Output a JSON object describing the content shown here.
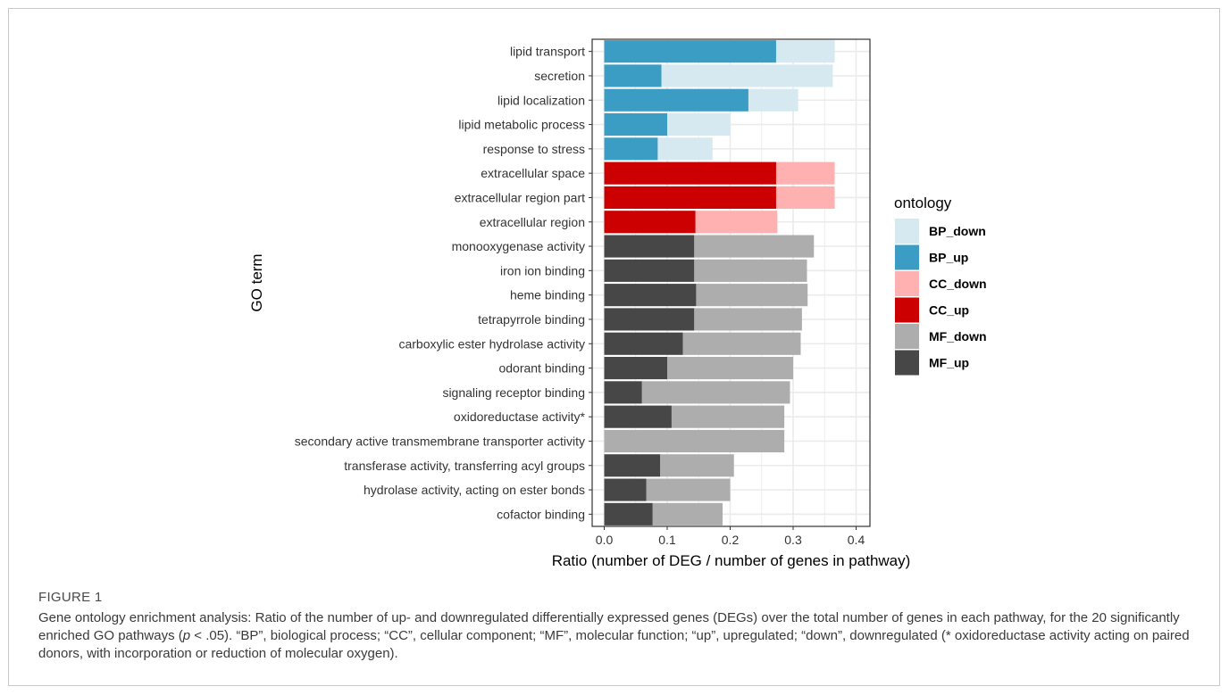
{
  "chart_data": {
    "type": "bar",
    "orientation": "horizontal",
    "stacked": true,
    "xlabel": "Ratio (number of DEG / number of genes in pathway)",
    "ylabel": "GO term",
    "xlim": [
      0,
      0.4
    ],
    "xticks": [
      "0.0",
      "0.1",
      "0.2",
      "0.3",
      "0.4"
    ],
    "grid": true,
    "legend_title": "ontology",
    "legend_position": "right",
    "legend": [
      {
        "name": "BP_down",
        "color": "#d6e9f0"
      },
      {
        "name": "BP_up",
        "color": "#3b9cc4"
      },
      {
        "name": "CC_down",
        "color": "#ffb0b0"
      },
      {
        "name": "CC_up",
        "color": "#cc0000"
      },
      {
        "name": "MF_down",
        "color": "#adadad"
      },
      {
        "name": "MF_up",
        "color": "#474747"
      }
    ],
    "categories": [
      {
        "term": "lipid transport",
        "ontology": "BP",
        "up": 0.273,
        "total": 0.366
      },
      {
        "term": "secretion",
        "ontology": "BP",
        "up": 0.091,
        "total": 0.363
      },
      {
        "term": "lipid localization",
        "ontology": "BP",
        "up": 0.229,
        "total": 0.308
      },
      {
        "term": "lipid metabolic process",
        "ontology": "BP",
        "up": 0.1,
        "total": 0.2
      },
      {
        "term": "response to stress",
        "ontology": "BP",
        "up": 0.085,
        "total": 0.172
      },
      {
        "term": "extracellular space",
        "ontology": "CC",
        "up": 0.273,
        "total": 0.366
      },
      {
        "term": "extracellular region part",
        "ontology": "CC",
        "up": 0.273,
        "total": 0.366
      },
      {
        "term": "extracellular region",
        "ontology": "CC",
        "up": 0.145,
        "total": 0.275
      },
      {
        "term": "monooxygenase activity",
        "ontology": "MF",
        "up": 0.143,
        "total": 0.333
      },
      {
        "term": "iron ion binding",
        "ontology": "MF",
        "up": 0.143,
        "total": 0.322
      },
      {
        "term": "heme binding",
        "ontology": "MF",
        "up": 0.146,
        "total": 0.323
      },
      {
        "term": "tetrapyrrole binding",
        "ontology": "MF",
        "up": 0.143,
        "total": 0.314
      },
      {
        "term": "carboxylic ester hydrolase activity",
        "ontology": "MF",
        "up": 0.125,
        "total": 0.312
      },
      {
        "term": "odorant binding",
        "ontology": "MF",
        "up": 0.1,
        "total": 0.3
      },
      {
        "term": "signaling receptor binding",
        "ontology": "MF",
        "up": 0.06,
        "total": 0.295
      },
      {
        "term": "oxidoreductase activity*",
        "ontology": "MF",
        "up": 0.107,
        "total": 0.286
      },
      {
        "term": "secondary active transmembrane transporter activity",
        "ontology": "MF",
        "up": 0.0,
        "total": 0.286
      },
      {
        "term": "transferase activity, transferring acyl groups",
        "ontology": "MF",
        "up": 0.089,
        "total": 0.206
      },
      {
        "term": "hydrolase activity, acting on ester bonds",
        "ontology": "MF",
        "up": 0.067,
        "total": 0.2
      },
      {
        "term": "cofactor binding",
        "ontology": "MF",
        "up": 0.077,
        "total": 0.188
      }
    ]
  },
  "caption": {
    "label": "FIGURE 1",
    "text_before_p": "Gene ontology enrichment analysis: Ratio of the number of up- and downregulated differentially expressed genes (DEGs) over the total number of genes in each pathway, for the 20 significantly enriched GO pathways (",
    "p_symbol": "p",
    "text_after_p": " < .05). “BP”, biological process; “CC”, cellular component; “MF”, molecular function; “up”, upregulated; “down”, downregulated (* oxidoreductase activity acting on paired donors, with incorporation or reduction of molecular oxygen)."
  }
}
